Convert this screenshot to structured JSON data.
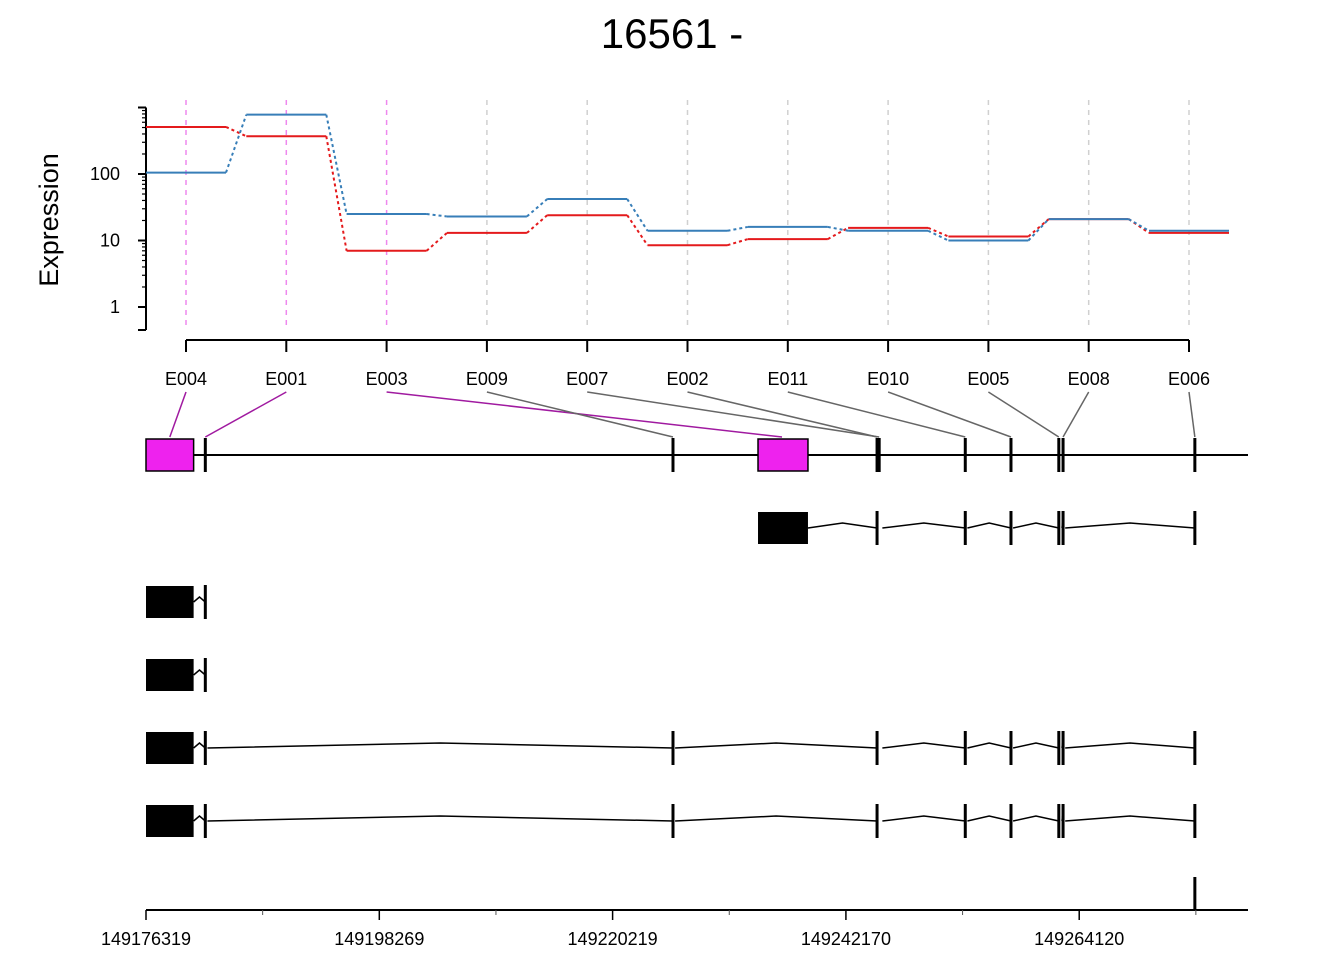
{
  "chart_data": {
    "type": "line",
    "title": "16561 -",
    "ylabel": "Expression",
    "y_scale": "log",
    "yticks": [
      {
        "value": 1,
        "label": "1"
      },
      {
        "value": 10,
        "label": "10"
      },
      {
        "value": 100,
        "label": "100"
      }
    ],
    "ylim": [
      0.45,
      1000
    ],
    "categories": [
      "E004",
      "E001",
      "E003",
      "E009",
      "E007",
      "E002",
      "E011",
      "E010",
      "E005",
      "E008",
      "E006"
    ],
    "highlighted": [
      "E004",
      "E001",
      "E003"
    ],
    "series": [
      {
        "color": "#e41a1c",
        "values": [
          510,
          370,
          7,
          13,
          24,
          8.5,
          10.5,
          15.5,
          11.5,
          21,
          13
        ]
      },
      {
        "color": "#377eb8",
        "values": [
          105,
          780,
          25,
          23,
          42,
          14,
          16,
          14,
          10,
          21,
          14
        ]
      }
    ],
    "colors": {
      "highlight_exon": "#ee22ee",
      "highlight_link": "#a01aa0",
      "link": "#666666",
      "grid": "#d0d0d0",
      "highlight_grid": "#ee88ee"
    },
    "genome": {
      "start": 149176319,
      "end": 149280000,
      "ticks": [
        149176319,
        149198269,
        149220219,
        149242170,
        149264120
      ],
      "tick_labels": [
        "149176319",
        "149198269",
        "149220219",
        "149242170",
        "149264120"
      ],
      "minor_ticks": [
        149187294,
        149209244,
        149231195,
        149253145,
        149275095
      ],
      "exons": [
        {
          "id": "E004",
          "start": 149176319,
          "end": 149180800
        },
        {
          "id": "E001",
          "start": 149181900,
          "end": 149182100
        },
        {
          "id": "E003",
          "start": 149233900,
          "end": 149238600
        },
        {
          "id": "E009",
          "start": 149225900,
          "end": 149226100
        },
        {
          "id": "E007",
          "start": 149245300,
          "end": 149245700
        },
        {
          "id": "E002",
          "start": 149245100,
          "end": 149245300
        },
        {
          "id": "E011",
          "start": 149253400,
          "end": 149253600
        },
        {
          "id": "E010",
          "start": 149257700,
          "end": 149257900
        },
        {
          "id": "E005",
          "start": 149262200,
          "end": 149262500
        },
        {
          "id": "E008",
          "start": 149262600,
          "end": 149262800
        },
        {
          "id": "E006",
          "start": 149275000,
          "end": 149275200
        }
      ],
      "transcripts": [
        {
          "exons": [
            [
              149233900,
              149238600
            ],
            [
              149245100,
              149245600
            ],
            [
              149253400,
              149253600
            ],
            [
              149257700,
              149257900
            ],
            [
              149262200,
              149262500
            ],
            [
              149262600,
              149262800
            ],
            [
              149275000,
              149275200
            ]
          ]
        },
        {
          "exons": [
            [
              149176319,
              149180800
            ],
            [
              149181900,
              149182100
            ]
          ]
        },
        {
          "exons": [
            [
              149176319,
              149180800
            ],
            [
              149181900,
              149182100
            ]
          ]
        },
        {
          "exons": [
            [
              149176319,
              149180800
            ],
            [
              149181900,
              149182100
            ],
            [
              149225900,
              149226100
            ],
            [
              149245100,
              149245600
            ],
            [
              149253400,
              149253600
            ],
            [
              149257700,
              149257900
            ],
            [
              149262200,
              149262500
            ],
            [
              149262600,
              149262800
            ],
            [
              149275000,
              149275200
            ]
          ]
        },
        {
          "exons": [
            [
              149176319,
              149180800
            ],
            [
              149181900,
              149182100
            ],
            [
              149225900,
              149226100
            ],
            [
              149245100,
              149245600
            ],
            [
              149253400,
              149253600
            ],
            [
              149257700,
              149257900
            ],
            [
              149262200,
              149262500
            ],
            [
              149262600,
              149262800
            ],
            [
              149275000,
              149275200
            ]
          ]
        },
        {
          "exons": [
            [
              149275000,
              149275200
            ]
          ]
        }
      ]
    }
  }
}
